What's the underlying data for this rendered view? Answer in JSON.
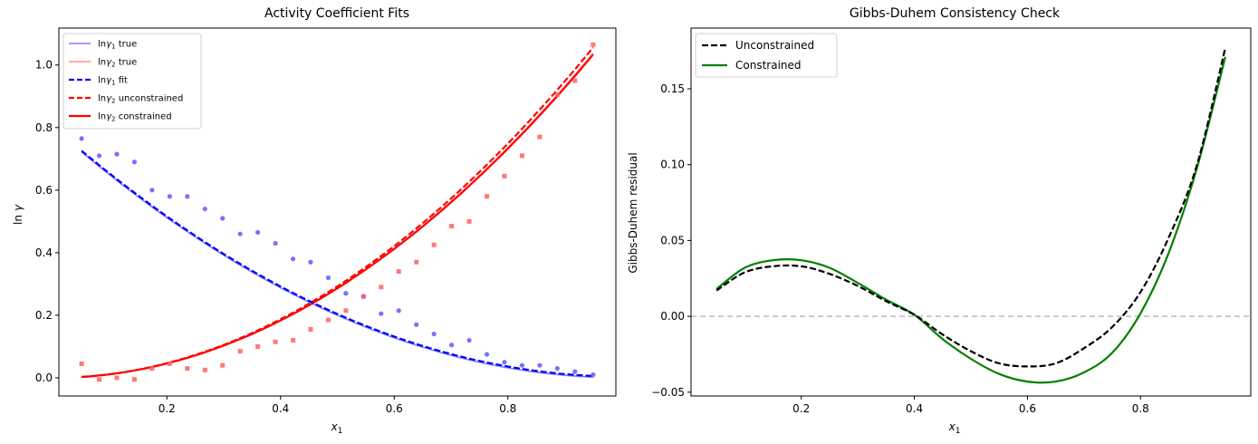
{
  "chart_data": [
    {
      "type": "scatter+line",
      "title": "Activity Coefficient Fits",
      "xlabel": "x1",
      "ylabel": "ln γ",
      "xlim": [
        0.01,
        0.99
      ],
      "ylim": [
        -0.058,
        1.118
      ],
      "xticks": [
        0.2,
        0.4,
        0.6,
        0.8
      ],
      "yticks": [
        0.0,
        0.2,
        0.4,
        0.6,
        0.8,
        1.0
      ],
      "legend_position": "upper-left",
      "series": [
        {
          "name": "lnγ1 true",
          "kind": "line",
          "color": "#8080ff",
          "style": "solid",
          "fn": "g1_true"
        },
        {
          "name": "lnγ2 true",
          "kind": "line",
          "color": "#ff9090",
          "style": "solid",
          "fn": "g2_true"
        },
        {
          "name": "lnγ1 fit",
          "kind": "line",
          "color": "#0000ff",
          "style": "dashed",
          "fn": "g1_fit"
        },
        {
          "name": "lnγ2 unconstrained",
          "kind": "line",
          "color": "#ff0000",
          "style": "dashed",
          "fn": "g2_unc"
        },
        {
          "name": "lnγ2 constrained",
          "kind": "line",
          "color": "#ff0000",
          "style": "solid",
          "fn": "g2_con"
        }
      ],
      "scatter1": {
        "color": "#5c5cff",
        "marker": "circle",
        "x": [
          0.05,
          0.081,
          0.112,
          0.143,
          0.174,
          0.205,
          0.236,
          0.267,
          0.298,
          0.329,
          0.36,
          0.391,
          0.422,
          0.453,
          0.484,
          0.515,
          0.546,
          0.577,
          0.608,
          0.639,
          0.67,
          0.701,
          0.732,
          0.763,
          0.794,
          0.825,
          0.856,
          0.887,
          0.918,
          0.95
        ],
        "y": [
          0.765,
          0.71,
          0.715,
          0.69,
          0.6,
          0.58,
          0.58,
          0.54,
          0.51,
          0.46,
          0.465,
          0.43,
          0.38,
          0.37,
          0.32,
          0.27,
          0.26,
          0.205,
          0.215,
          0.17,
          0.14,
          0.105,
          0.12,
          0.075,
          0.05,
          0.04,
          0.04,
          0.03,
          0.02,
          0.01
        ]
      },
      "scatter2": {
        "color": "#ff6060",
        "marker": "square",
        "x": [
          0.05,
          0.081,
          0.112,
          0.143,
          0.174,
          0.205,
          0.236,
          0.267,
          0.298,
          0.329,
          0.36,
          0.391,
          0.422,
          0.453,
          0.484,
          0.515,
          0.546,
          0.577,
          0.608,
          0.639,
          0.67,
          0.701,
          0.732,
          0.763,
          0.794,
          0.825,
          0.856,
          0.887,
          0.918,
          0.95
        ],
        "y": [
          0.045,
          -0.005,
          0.0,
          -0.005,
          0.03,
          0.045,
          0.03,
          0.025,
          0.04,
          0.085,
          0.1,
          0.115,
          0.12,
          0.155,
          0.185,
          0.215,
          0.26,
          0.29,
          0.34,
          0.37,
          0.425,
          0.485,
          0.5,
          0.58,
          0.645,
          0.71,
          0.77,
          0.905,
          0.95,
          1.065
        ]
      }
    },
    {
      "type": "line",
      "title": "Gibbs-Duhem Consistency Check",
      "xlabel": "x1",
      "ylabel": "Gibbs-Duhem residual",
      "xlim": [
        0.005,
        0.995
      ],
      "ylim": [
        -0.0525,
        0.19
      ],
      "xticks": [
        0.2,
        0.4,
        0.6,
        0.8
      ],
      "yticks": [
        -0.05,
        0.0,
        0.05,
        0.1,
        0.15
      ],
      "yticklabels": [
        "−0.05",
        "0.00",
        "0.05",
        "0.10",
        "0.15"
      ],
      "zero_line": {
        "y": 0,
        "color": "#bbbbbb",
        "style": "dashed"
      },
      "legend_position": "upper-left",
      "series": [
        {
          "name": "Unconstrained",
          "color": "#000000",
          "style": "dashed",
          "x": [
            0.05,
            0.1,
            0.15,
            0.2,
            0.25,
            0.3,
            0.35,
            0.4,
            0.45,
            0.5,
            0.55,
            0.6,
            0.65,
            0.7,
            0.75,
            0.8,
            0.85,
            0.9,
            0.95
          ],
          "y": [
            0.017,
            0.029,
            0.033,
            0.033,
            0.028,
            0.02,
            0.01,
            0.001,
            -0.012,
            -0.023,
            -0.031,
            -0.033,
            -0.031,
            -0.021,
            -0.007,
            0.016,
            0.052,
            0.1,
            0.177
          ]
        },
        {
          "name": "Constrained",
          "color": "#008000",
          "style": "solid",
          "x": [
            0.05,
            0.1,
            0.15,
            0.2,
            0.25,
            0.3,
            0.35,
            0.4,
            0.45,
            0.5,
            0.55,
            0.6,
            0.65,
            0.7,
            0.75,
            0.8,
            0.85,
            0.9,
            0.95
          ],
          "y": [
            0.018,
            0.032,
            0.037,
            0.037,
            0.032,
            0.022,
            0.011,
            0.001,
            -0.015,
            -0.028,
            -0.038,
            -0.043,
            -0.043,
            -0.037,
            -0.024,
            0.002,
            0.042,
            0.098,
            0.171
          ]
        }
      ]
    }
  ]
}
